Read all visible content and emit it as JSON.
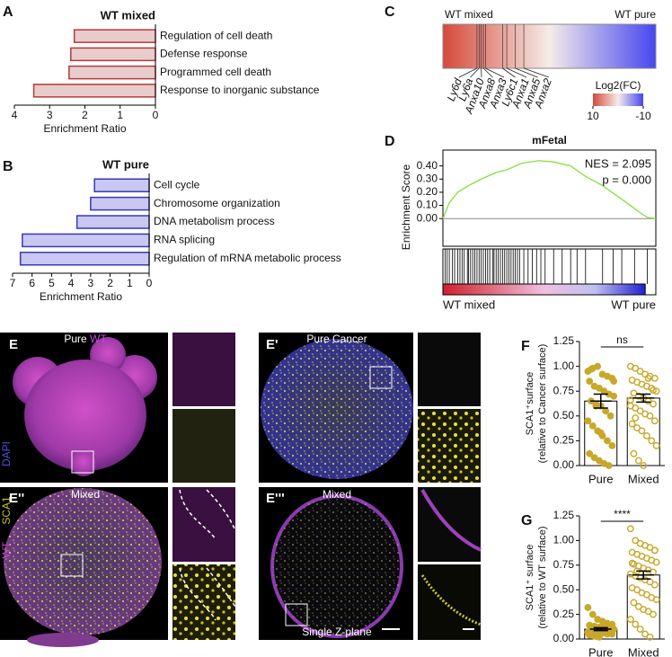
{
  "chart_data": [
    {
      "type": "hbar",
      "panel": "A",
      "title": "WT mixed",
      "categories": [
        "Regulation of cell death",
        "Defense response",
        "Programmed cell death",
        "Response to inorganic substance"
      ],
      "values": [
        2.3,
        2.4,
        2.45,
        3.45
      ],
      "color": "#e8cccc",
      "edge_color": "#b83a3a",
      "xlim": [
        4,
        0
      ],
      "xticks": [
        4,
        3,
        2,
        1,
        0
      ],
      "xlabel": "Enrichment Ratio"
    },
    {
      "type": "hbar",
      "panel": "B",
      "title": "WT pure",
      "categories": [
        "Cell cycle",
        "Chromosome organization",
        "DNA metabolism process",
        "RNA splicing",
        "Regulation of mRNA metabolic process"
      ],
      "values": [
        2.8,
        3.0,
        3.7,
        6.5,
        6.6
      ],
      "color": "#c8c8f2",
      "edge_color": "#3838b8",
      "xlim": [
        7,
        0
      ],
      "xticks": [
        7,
        6,
        5,
        4,
        3,
        2,
        1,
        0
      ],
      "xlabel": "Enrichment Ratio"
    },
    {
      "type": "heatmap",
      "panel": "C",
      "left_label": "WT mixed",
      "right_label": "WT pure",
      "colors": [
        "#d6493a",
        "#f5ece8",
        "#4646f0"
      ],
      "genes": [
        "Ly6d",
        "Ly6a",
        "Anxa10",
        "Anxa8",
        "Anxa3",
        "Ly6c1",
        "Anxa1",
        "Anxa5",
        "Anxa2"
      ],
      "gene_positions": [
        0.16,
        0.17,
        0.18,
        0.19,
        0.2,
        0.28,
        0.3,
        0.34,
        0.38
      ],
      "colorbar_title": "Log2(FC)",
      "clim": [
        10,
        -10
      ],
      "colorbar_ticks": [
        10,
        -10
      ]
    },
    {
      "type": "gsea",
      "panel": "D",
      "title": "mFetal",
      "ylabel": "Enrichment Score",
      "x": [
        0,
        3,
        7,
        12,
        18,
        25,
        30,
        37,
        45,
        52,
        60,
        67,
        75,
        82,
        88,
        93,
        96,
        100
      ],
      "values": [
        0,
        0.12,
        0.2,
        0.25,
        0.3,
        0.35,
        0.37,
        0.42,
        0.44,
        0.43,
        0.4,
        0.32,
        0.25,
        0.17,
        0.1,
        0.04,
        0.01,
        0
      ],
      "color": "#86e040",
      "xlim": [
        0,
        100
      ],
      "ylim": [
        -0.21,
        0.52
      ],
      "yticks": [
        {
          "value": 0,
          "label": "0.00"
        },
        {
          "value": 0.1,
          "label": "0.10"
        },
        {
          "value": 0.2,
          "label": "0.20"
        },
        {
          "value": 0.3,
          "label": "0.30"
        },
        {
          "value": 0.4,
          "label": "0.40"
        }
      ],
      "hits": [
        1,
        2,
        3,
        4.5,
        5.5,
        7,
        8,
        9,
        10,
        11.5,
        12,
        13,
        14,
        15,
        16,
        17,
        18,
        19,
        20,
        21,
        22,
        23.5,
        24,
        25,
        26,
        27,
        28,
        29,
        30,
        31,
        32,
        33,
        34,
        35,
        36,
        38,
        40,
        42,
        44,
        46,
        48,
        52,
        56,
        60,
        63,
        67,
        75,
        80,
        84,
        90,
        96
      ],
      "strip_colors": [
        "#d02030",
        "#e07080",
        "#f0c0e0",
        "#c0c0f0",
        "#2020d0"
      ],
      "annotations": [
        "NES = 2.095",
        "p = 0.000"
      ],
      "left_label": "WT mixed",
      "right_label": "WT pure"
    },
    {
      "type": "barscatter",
      "panel": "F",
      "ylabel": [
        "SCA1⁺surface",
        "(relative to Cancer surface)"
      ],
      "categories": [
        "Pure",
        "Mixed"
      ],
      "values": [
        0.65,
        0.68
      ],
      "errors": [
        0.07,
        0.04
      ],
      "significance": "ns",
      "color": "#c8a828",
      "filled": [
        true,
        false
      ],
      "points": [
        [
          0.95,
          0.98,
          1.0,
          0.92,
          0.9,
          0.88,
          0.85,
          0.8,
          0.78,
          0.75,
          0.72,
          0.7,
          0.65,
          0.62,
          0.6,
          0.55,
          0.5,
          0.45,
          0.4,
          0.35,
          0.3,
          0.25,
          0.2,
          0.12,
          0.08,
          0.05,
          0.02,
          0.0,
          0.85,
          0.97,
          0.6,
          0.33
        ],
        [
          1.0,
          0.98,
          0.95,
          0.92,
          0.9,
          0.88,
          0.86,
          0.84,
          0.82,
          0.8,
          0.78,
          0.75,
          0.73,
          0.7,
          0.68,
          0.65,
          0.62,
          0.6,
          0.58,
          0.55,
          0.52,
          0.5,
          0.45,
          0.42,
          0.38,
          0.35,
          0.3,
          0.25,
          0.2,
          0.12,
          0.05,
          0.0,
          0.88,
          0.76,
          0.66,
          0.48
        ]
      ],
      "ylim": [
        0,
        1.25
      ],
      "yticks": [
        {
          "value": 0,
          "label": "0.00"
        },
        {
          "value": 0.25,
          "label": "0.25"
        },
        {
          "value": 0.5,
          "label": "0.50"
        },
        {
          "value": 0.75,
          "label": "0.75"
        },
        {
          "value": 1,
          "label": "1.00"
        },
        {
          "value": 1.25,
          "label": "1.25"
        }
      ]
    },
    {
      "type": "barscatter",
      "panel": "G",
      "ylabel": [
        "SCA1⁺ surface",
        "(relative to WT surface)"
      ],
      "categories": [
        "Pure",
        "Mixed"
      ],
      "values": [
        0.1,
        0.65
      ],
      "errors": [
        0.015,
        0.04
      ],
      "significance": "****",
      "color": "#c8a828",
      "filled": [
        true,
        false
      ],
      "points": [
        [
          0.32,
          0.25,
          0.2,
          0.18,
          0.16,
          0.15,
          0.14,
          0.13,
          0.12,
          0.12,
          0.11,
          0.1,
          0.1,
          0.09,
          0.09,
          0.08,
          0.08,
          0.07,
          0.07,
          0.06,
          0.06,
          0.05,
          0.05,
          0.04,
          0.03,
          0.02,
          0.11,
          0.13,
          0.1,
          0.08
        ],
        [
          1.12,
          1.0,
          0.97,
          0.95,
          0.93,
          0.9,
          0.88,
          0.86,
          0.84,
          0.82,
          0.8,
          0.78,
          0.76,
          0.74,
          0.72,
          0.7,
          0.68,
          0.66,
          0.64,
          0.62,
          0.6,
          0.58,
          0.55,
          0.52,
          0.5,
          0.47,
          0.45,
          0.42,
          0.4,
          0.37,
          0.33,
          0.3,
          0.28,
          0.25,
          0.2,
          0.15,
          0.1,
          0.05,
          0.02,
          0.9,
          0.77,
          0.69
        ]
      ],
      "ylim": [
        0,
        1.25
      ],
      "yticks": [
        {
          "value": 0,
          "label": "0.00"
        },
        {
          "value": 0.25,
          "label": "0.25"
        },
        {
          "value": 0.5,
          "label": "0.50"
        },
        {
          "value": 0.75,
          "label": "0.75"
        },
        {
          "value": 1,
          "label": "1.00"
        },
        {
          "value": 1.25,
          "label": "1.25"
        }
      ]
    }
  ],
  "micrographs": [
    {
      "panel": "E",
      "caption": [
        "Pure",
        "WT"
      ]
    },
    {
      "panel": "E'",
      "caption": [
        "Pure Cancer"
      ]
    },
    {
      "panel": "E''",
      "caption": [
        "Mixed"
      ]
    },
    {
      "panel": "E'''",
      "caption": [
        "Mixed"
      ],
      "note": "Single Z-plane"
    }
  ],
  "channels": [
    "DAPI",
    "SCA1",
    "WT"
  ]
}
